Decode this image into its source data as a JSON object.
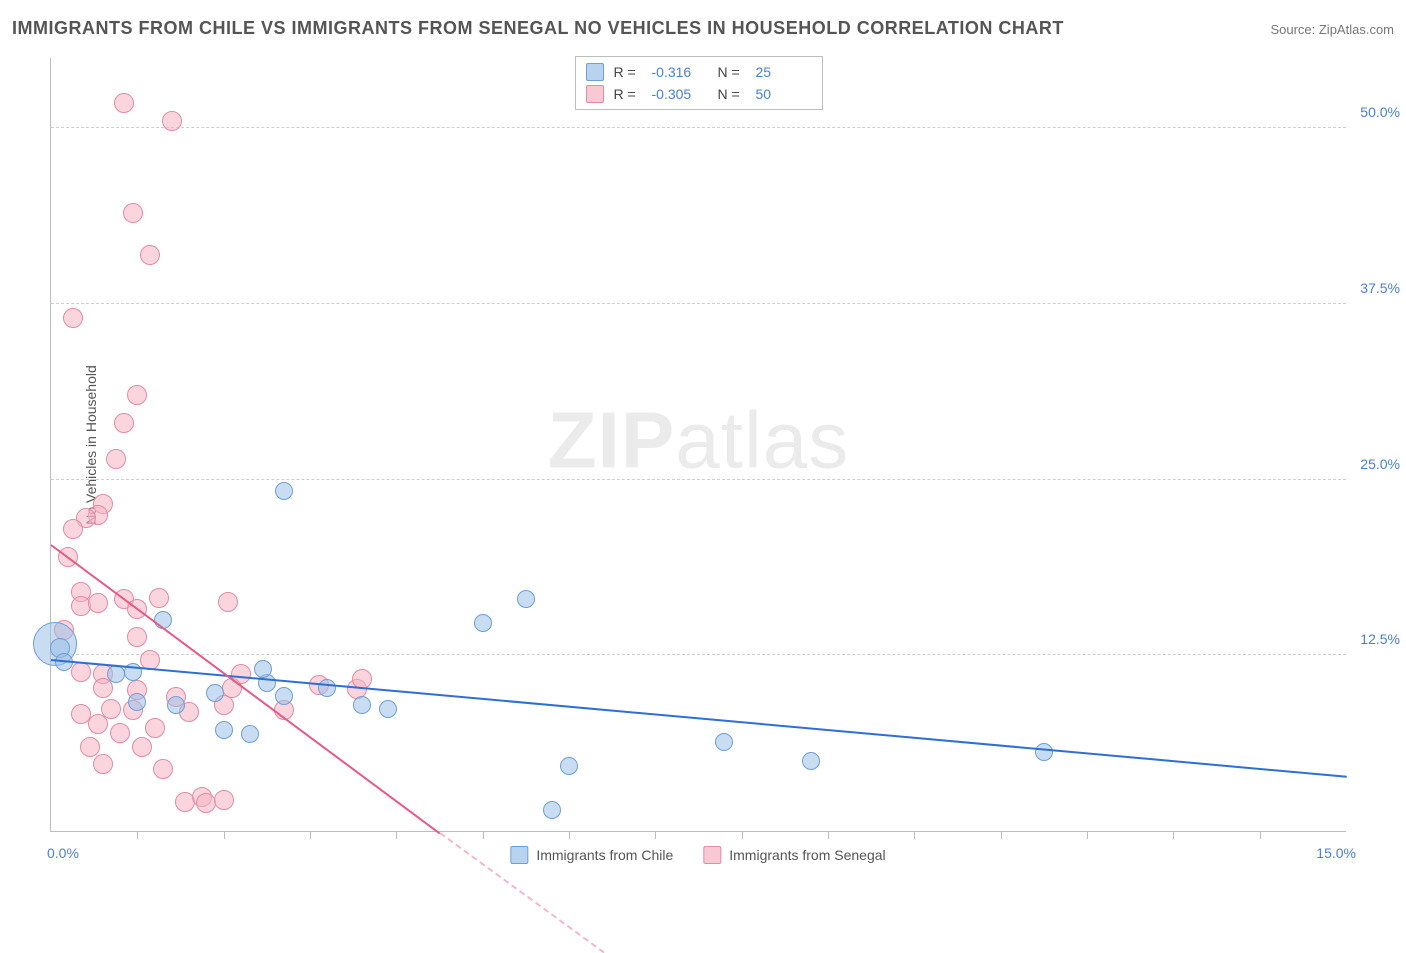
{
  "title": "IMMIGRANTS FROM CHILE VS IMMIGRANTS FROM SENEGAL NO VEHICLES IN HOUSEHOLD CORRELATION CHART",
  "source": "Source: ZipAtlas.com",
  "watermark_a": "ZIP",
  "watermark_b": "atlas",
  "axes": {
    "y_label": "No Vehicles in Household",
    "x_min": 0.0,
    "x_max": 15.0,
    "y_min": 0.0,
    "y_max": 55.0,
    "y_ticks": [
      12.5,
      25.0,
      37.5,
      50.0
    ],
    "y_tick_labels": [
      "12.5%",
      "25.0%",
      "37.5%",
      "50.0%"
    ],
    "x_minor_ticks": [
      1,
      2,
      3,
      4,
      5,
      6,
      7,
      8,
      9,
      10,
      11,
      12,
      13,
      14
    ],
    "x_left_label": "0.0%",
    "x_right_label": "15.0%",
    "grid_color": "#cfcfcf",
    "axis_color": "#bdbdbd",
    "label_color": "#4a80d6",
    "font_size_labels": 14
  },
  "legend_top": {
    "rows": [
      {
        "swatch": "blue",
        "r_label": "R =",
        "r_value": "-0.316",
        "n_label": "N =",
        "n_value": "25"
      },
      {
        "swatch": "pink",
        "r_label": "R =",
        "r_value": "-0.305",
        "n_label": "N =",
        "n_value": "50"
      }
    ]
  },
  "legend_bottom": {
    "items": [
      {
        "swatch": "blue",
        "label": "Immigrants from Chile"
      },
      {
        "swatch": "pink",
        "label": "Immigrants from Senegal"
      }
    ]
  },
  "colors": {
    "blue_fill": "rgba(154,192,232,0.55)",
    "blue_stroke": "#6f9fd8",
    "blue_line": "#2d6fd2",
    "pink_fill": "rgba(245,178,195,0.55)",
    "pink_stroke": "#e28ca3",
    "pink_line": "#e65a86",
    "background": "#ffffff"
  },
  "marker_radius": 9,
  "trend_lines": {
    "blue": {
      "x1": 0.0,
      "y1": 12.3,
      "x2": 15.0,
      "y2": 4.0
    },
    "pink_solid": {
      "x1": 0.0,
      "y1": 20.5,
      "x2": 4.5,
      "y2": 0.0
    },
    "pink_dash": {
      "x1": 4.5,
      "y1": 0.0,
      "x2": 6.4,
      "y2": -8.5
    }
  },
  "series": {
    "blue": [
      {
        "x": 2.7,
        "y": 24.2,
        "r": 9
      },
      {
        "x": 5.0,
        "y": 14.8,
        "r": 9
      },
      {
        "x": 5.5,
        "y": 16.5,
        "r": 9
      },
      {
        "x": 7.8,
        "y": 6.3,
        "r": 9
      },
      {
        "x": 8.8,
        "y": 5.0,
        "r": 9
      },
      {
        "x": 11.5,
        "y": 5.6,
        "r": 9
      },
      {
        "x": 5.8,
        "y": 1.5,
        "r": 9
      },
      {
        "x": 6.0,
        "y": 4.6,
        "r": 9
      },
      {
        "x": 3.6,
        "y": 9.0,
        "r": 9
      },
      {
        "x": 3.9,
        "y": 8.7,
        "r": 9
      },
      {
        "x": 3.2,
        "y": 10.2,
        "r": 9
      },
      {
        "x": 2.5,
        "y": 10.5,
        "r": 9
      },
      {
        "x": 2.7,
        "y": 9.6,
        "r": 9
      },
      {
        "x": 2.45,
        "y": 11.5,
        "r": 9
      },
      {
        "x": 2.0,
        "y": 7.2,
        "r": 9
      },
      {
        "x": 2.3,
        "y": 6.9,
        "r": 9
      },
      {
        "x": 1.9,
        "y": 9.8,
        "r": 9
      },
      {
        "x": 1.45,
        "y": 9.0,
        "r": 9
      },
      {
        "x": 1.3,
        "y": 15.0,
        "r": 9
      },
      {
        "x": 0.95,
        "y": 11.3,
        "r": 9
      },
      {
        "x": 1.0,
        "y": 9.2,
        "r": 9
      },
      {
        "x": 0.75,
        "y": 11.2,
        "r": 9
      },
      {
        "x": 0.05,
        "y": 13.3,
        "r": 22
      },
      {
        "x": 0.1,
        "y": 13.0,
        "r": 10
      },
      {
        "x": 0.15,
        "y": 12.0,
        "r": 9
      }
    ],
    "pink": [
      {
        "x": 0.85,
        "y": 51.8,
        "r": 10
      },
      {
        "x": 1.4,
        "y": 50.5,
        "r": 10
      },
      {
        "x": 0.95,
        "y": 44.0,
        "r": 10
      },
      {
        "x": 1.15,
        "y": 41.0,
        "r": 10
      },
      {
        "x": 0.25,
        "y": 36.5,
        "r": 10
      },
      {
        "x": 1.0,
        "y": 31.0,
        "r": 10
      },
      {
        "x": 0.85,
        "y": 29.0,
        "r": 10
      },
      {
        "x": 0.75,
        "y": 26.5,
        "r": 10
      },
      {
        "x": 0.6,
        "y": 23.3,
        "r": 10
      },
      {
        "x": 0.55,
        "y": 22.5,
        "r": 10
      },
      {
        "x": 0.4,
        "y": 22.3,
        "r": 10
      },
      {
        "x": 0.25,
        "y": 21.5,
        "r": 10
      },
      {
        "x": 0.2,
        "y": 19.5,
        "r": 10
      },
      {
        "x": 0.35,
        "y": 17.0,
        "r": 10
      },
      {
        "x": 0.35,
        "y": 16.0,
        "r": 10
      },
      {
        "x": 0.55,
        "y": 16.2,
        "r": 10
      },
      {
        "x": 0.85,
        "y": 16.5,
        "r": 10
      },
      {
        "x": 1.0,
        "y": 15.8,
        "r": 10
      },
      {
        "x": 1.25,
        "y": 16.6,
        "r": 10
      },
      {
        "x": 0.15,
        "y": 14.3,
        "r": 10
      },
      {
        "x": 1.0,
        "y": 13.8,
        "r": 10
      },
      {
        "x": 1.15,
        "y": 12.2,
        "r": 10
      },
      {
        "x": 0.35,
        "y": 11.3,
        "r": 10
      },
      {
        "x": 0.6,
        "y": 11.2,
        "r": 10
      },
      {
        "x": 0.6,
        "y": 10.2,
        "r": 10
      },
      {
        "x": 1.0,
        "y": 10.0,
        "r": 10
      },
      {
        "x": 1.45,
        "y": 9.5,
        "r": 10
      },
      {
        "x": 0.35,
        "y": 8.3,
        "r": 10
      },
      {
        "x": 0.7,
        "y": 8.7,
        "r": 10
      },
      {
        "x": 0.95,
        "y": 8.6,
        "r": 10
      },
      {
        "x": 0.55,
        "y": 7.6,
        "r": 10
      },
      {
        "x": 0.8,
        "y": 7.0,
        "r": 10
      },
      {
        "x": 1.2,
        "y": 7.3,
        "r": 10
      },
      {
        "x": 1.6,
        "y": 8.5,
        "r": 10
      },
      {
        "x": 1.05,
        "y": 6.0,
        "r": 10
      },
      {
        "x": 0.45,
        "y": 6.0,
        "r": 10
      },
      {
        "x": 0.6,
        "y": 4.8,
        "r": 10
      },
      {
        "x": 1.3,
        "y": 4.4,
        "r": 10
      },
      {
        "x": 1.55,
        "y": 2.1,
        "r": 10
      },
      {
        "x": 1.75,
        "y": 2.4,
        "r": 10
      },
      {
        "x": 1.8,
        "y": 2.0,
        "r": 10
      },
      {
        "x": 2.0,
        "y": 2.2,
        "r": 10
      },
      {
        "x": 2.0,
        "y": 9.0,
        "r": 10
      },
      {
        "x": 2.1,
        "y": 10.2,
        "r": 10
      },
      {
        "x": 2.05,
        "y": 16.3,
        "r": 10
      },
      {
        "x": 2.2,
        "y": 11.2,
        "r": 10
      },
      {
        "x": 2.7,
        "y": 8.6,
        "r": 10
      },
      {
        "x": 3.1,
        "y": 10.4,
        "r": 10
      },
      {
        "x": 3.55,
        "y": 10.1,
        "r": 10
      },
      {
        "x": 3.6,
        "y": 10.8,
        "r": 10
      }
    ]
  }
}
